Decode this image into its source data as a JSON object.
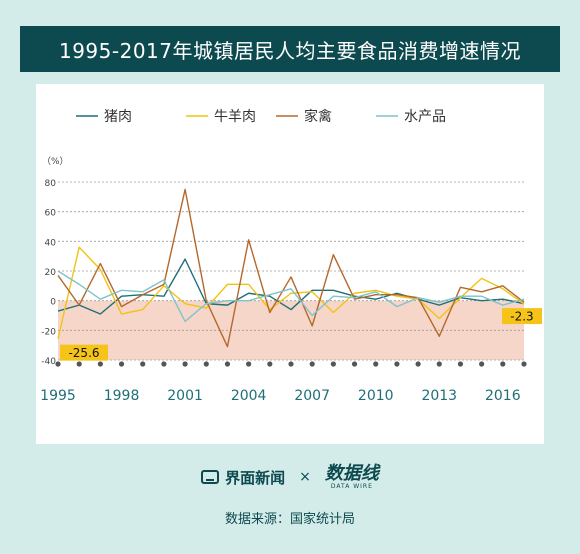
{
  "title": "1995-2017年城镇居民人均主要食品消费增速情况",
  "footer": {
    "brand": "界面新闻",
    "times": "×",
    "logo": "数据线",
    "logo_sub": "DATA WIRE",
    "source": "数据来源：国家统计局"
  },
  "colors": {
    "background": "#d4ece9",
    "banner": "#0d4a50",
    "negative_band": "#f5d6c8",
    "annotation_bg": "#f6c419"
  },
  "chart_data": {
    "type": "line",
    "ylabel": "（%）",
    "ylim": [
      -40,
      80
    ],
    "yticks": [
      -40,
      -20,
      0,
      20,
      40,
      60,
      80
    ],
    "xticks": [
      "1995",
      "1998",
      "2001",
      "2004",
      "2007",
      "2010",
      "2013",
      "2016"
    ],
    "grid": true,
    "legend_position": "top",
    "x": [
      1995,
      1996,
      1997,
      1998,
      1999,
      2000,
      2001,
      2002,
      2003,
      2004,
      2005,
      2006,
      2007,
      2008,
      2009,
      2010,
      2011,
      2012,
      2013,
      2014,
      2015,
      2016,
      2017
    ],
    "series": [
      {
        "name": "猪肉",
        "color": "#1f6f78",
        "values": [
          -7,
          -3,
          -9,
          3,
          4,
          3,
          28,
          -2,
          -3,
          5,
          3,
          -6,
          7,
          7,
          3,
          1,
          5,
          1,
          -3,
          2,
          0,
          1,
          -2
        ]
      },
      {
        "name": "牛羊肉",
        "color": "#f2c313",
        "values": [
          -25.6,
          36,
          21,
          -9,
          -6,
          10,
          -2,
          -5,
          11,
          11,
          -6,
          5,
          6,
          -8,
          5,
          7,
          3,
          1,
          -12,
          2,
          15,
          8,
          -2.3
        ]
      },
      {
        "name": "家禽",
        "color": "#b5682c",
        "values": [
          17,
          -3,
          25,
          -4,
          4,
          11,
          75,
          0,
          -31,
          41,
          -8,
          16,
          -17,
          31,
          1,
          4,
          4,
          2,
          -24,
          9,
          6,
          10,
          -1
        ]
      },
      {
        "name": "水产品",
        "color": "#7fc3cc",
        "values": [
          20,
          11,
          1,
          7,
          6,
          14,
          -14,
          -2,
          0,
          0,
          4,
          8,
          -10,
          3,
          2,
          6,
          -4,
          2,
          -1,
          3,
          3,
          -3,
          1
        ]
      }
    ],
    "annotations": [
      {
        "label": "-25.6",
        "series": "牛羊肉",
        "x": 1995
      },
      {
        "label": "-2.3",
        "series": "牛羊肉",
        "x": 2017
      }
    ]
  }
}
